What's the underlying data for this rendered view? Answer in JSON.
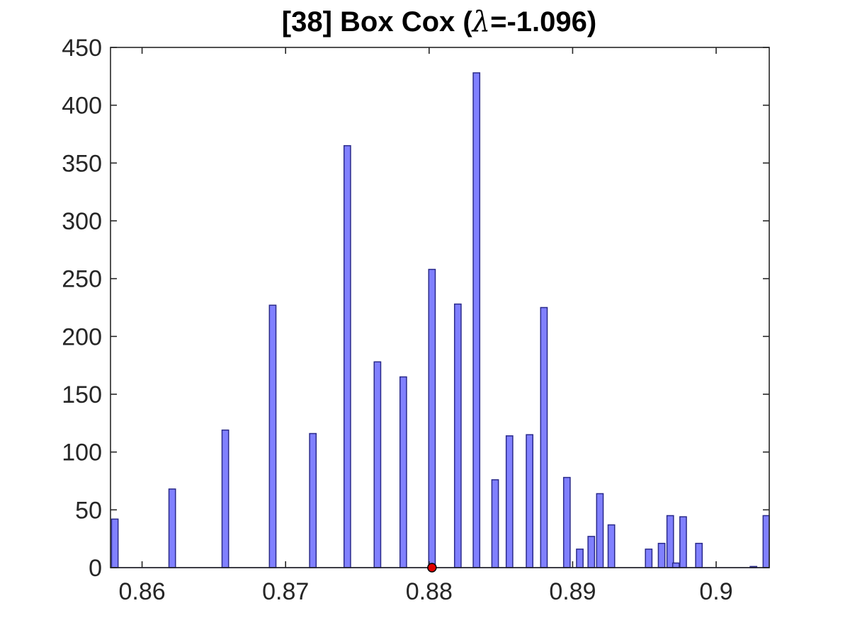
{
  "chart_data": {
    "type": "bar",
    "title_prefix": "[38] Box Cox (",
    "title_symbol": "λ",
    "title_suffix": "=-1.096)",
    "xlabel": "",
    "ylabel": "",
    "xlim": [
      0.8578,
      0.9037
    ],
    "ylim": [
      0,
      450
    ],
    "grid": false,
    "xticks": [
      0.86,
      0.87,
      0.88,
      0.89,
      0.9
    ],
    "xtick_labels": [
      "0.86",
      "0.87",
      "0.88",
      "0.89",
      "0.9"
    ],
    "yticks": [
      0,
      50,
      100,
      150,
      200,
      250,
      300,
      350,
      400,
      450
    ],
    "ytick_labels": [
      "0",
      "50",
      "100",
      "150",
      "200",
      "250",
      "300",
      "350",
      "400",
      "450"
    ],
    "bin_width": 0.000456,
    "x": [
      0.8581,
      0.8621,
      0.8658,
      0.8691,
      0.8719,
      0.8743,
      0.8764,
      0.8782,
      0.8802,
      0.882,
      0.8833,
      0.8846,
      0.8856,
      0.887,
      0.888,
      0.8896,
      0.8905,
      0.8913,
      0.8919,
      0.8927,
      0.8953,
      0.8962,
      0.8968,
      0.8972,
      0.8977,
      0.8988,
      0.9026,
      0.9035
    ],
    "values": [
      42,
      68,
      119,
      227,
      116,
      365,
      178,
      165,
      258,
      228,
      428,
      76,
      114,
      115,
      225,
      78,
      16,
      27,
      64,
      37,
      16,
      21,
      45,
      4,
      44,
      21,
      1,
      45
    ],
    "colors": {
      "bar_fill": "#8080ff",
      "bar_edge": "#2a2a8a",
      "marker": "#e00000"
    },
    "markers": [
      {
        "x": 0.8802,
        "y": 0
      }
    ]
  }
}
